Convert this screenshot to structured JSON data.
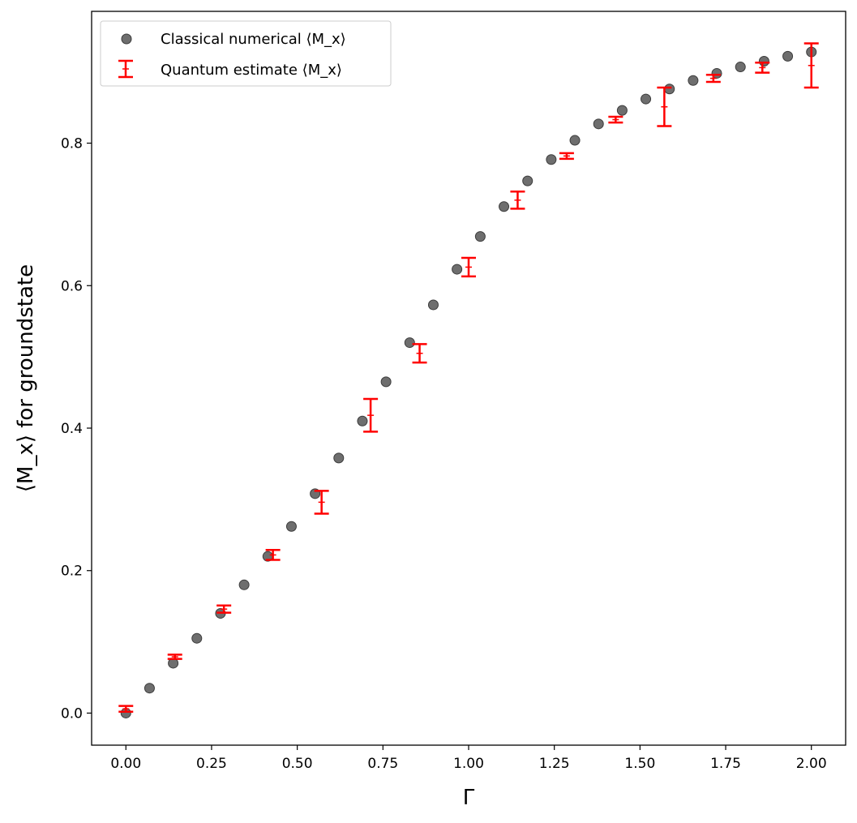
{
  "chart_data": {
    "type": "scatter",
    "title": "",
    "xlabel": "Γ",
    "ylabel": "⟨M_x⟩ for groundstate",
    "xlim": [
      -0.1,
      2.1
    ],
    "ylim": [
      -0.045,
      0.985
    ],
    "xticks": [
      0.0,
      0.25,
      0.5,
      0.75,
      1.0,
      1.25,
      1.5,
      1.75,
      2.0
    ],
    "xtick_labels": [
      "0.00",
      "0.25",
      "0.50",
      "0.75",
      "1.00",
      "1.25",
      "1.50",
      "1.75",
      "2.00"
    ],
    "yticks": [
      0.0,
      0.2,
      0.4,
      0.6,
      0.8
    ],
    "ytick_labels": [
      "0.0",
      "0.2",
      "0.4",
      "0.6",
      "0.8"
    ],
    "grid": false,
    "legend_position": "top-left",
    "series": [
      {
        "name": "Classical numerical ⟨M_x⟩",
        "kind": "scatter",
        "color": "#6e6e6e",
        "x": [
          0.0,
          0.069,
          0.138,
          0.207,
          0.276,
          0.345,
          0.414,
          0.483,
          0.552,
          0.621,
          0.69,
          0.759,
          0.828,
          0.897,
          0.966,
          1.034,
          1.103,
          1.172,
          1.241,
          1.31,
          1.379,
          1.448,
          1.517,
          1.586,
          1.655,
          1.724,
          1.793,
          1.862,
          1.931,
          2.0
        ],
        "y": [
          0.0,
          0.035,
          0.07,
          0.105,
          0.14,
          0.18,
          0.22,
          0.262,
          0.308,
          0.358,
          0.41,
          0.465,
          0.52,
          0.573,
          0.623,
          0.669,
          0.711,
          0.747,
          0.777,
          0.804,
          0.827,
          0.846,
          0.862,
          0.876,
          0.888,
          0.898,
          0.907,
          0.915,
          0.922,
          0.928
        ]
      },
      {
        "name": "Quantum estimate ⟨M_x⟩",
        "kind": "errorbar",
        "color": "#ff0000",
        "x": [
          0.0,
          0.143,
          0.286,
          0.429,
          0.571,
          0.714,
          0.857,
          1.0,
          1.143,
          1.286,
          1.429,
          1.571,
          1.714,
          1.857,
          2.0
        ],
        "y": [
          0.006,
          0.079,
          0.146,
          0.222,
          0.296,
          0.418,
          0.505,
          0.626,
          0.72,
          0.782,
          0.833,
          0.851,
          0.891,
          0.906,
          0.909
        ],
        "err": [
          0.004,
          0.003,
          0.005,
          0.007,
          0.016,
          0.023,
          0.013,
          0.013,
          0.012,
          0.004,
          0.004,
          0.027,
          0.005,
          0.007,
          0.031
        ]
      }
    ]
  }
}
